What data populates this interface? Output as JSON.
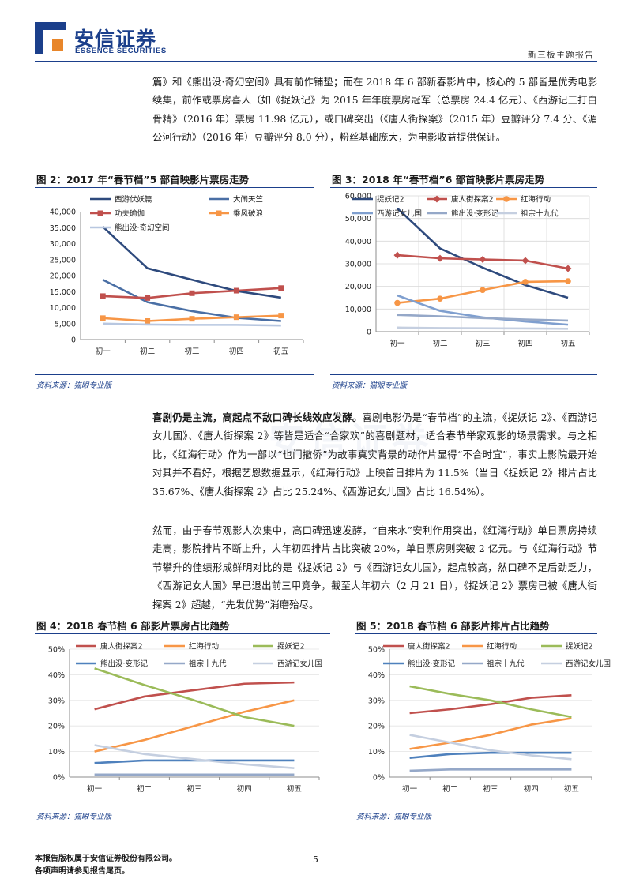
{
  "header": {
    "logo_cn": "安信证券",
    "logo_en": "ESSENCE SECURITIES",
    "report_type": "新三板主题报告",
    "brand_color": "#1b3f8b",
    "accent_color": "#e8862a"
  },
  "watermark": "安信证券",
  "paragraphs": {
    "p1": "篇》和《熊出没·奇幻空间》具有前作铺垫；而在 2018 年 6 部新春影片中，核心的 5 部皆是优秀电影续集，前作或票房喜人（如《捉妖记》为 2015 年年度票房冠军（总票房 24.4 亿元）、《西游记三打白骨精》（2016 年）票房 11.98 亿元），或口碑突出（《唐人街探案》（2015 年）豆瓣评分 7.4 分、《湄公河行动》（2016 年）豆瓣评分 8.0 分），粉丝基础庞大，为电影收益提供保证。",
    "p2_bold": "喜剧仍是主流，高起点不敌口碑长线效应发酵。",
    "p2_rest": "喜剧电影仍是“春节档”的主流，《捉妖记 2》、《西游记女儿国》、《唐人街探案 2》等皆是适合“合家欢”的喜剧题材，适合春节举家观影的场景需求。与之相比，《红海行动》作为一部以“也门撤侨”为故事真实背景的动作片显得“不合时宜”，事实上影院最开始对其并不看好，根据艺恩数据显示，《红海行动》上映首日排片为 11.5%（当日《捉妖记 2》排片占比 35.67%、《唐人街探案 2》占比 25.24%、《西游记女儿国》占比 16.54%）。",
    "p3": "然而，由于春节观影人次集中，高口碑迅速发酵，“自来水”安利作用突出，《红海行动》单日票房持续走高，影院排片不断上升，大年初四排片占比突破 20%，单日票房则突破 2 亿元。与《红海行动》节节攀升的佳绩形成鲜明对比的是《捉妖记 2》与《西游记女儿国》，起点较高，然口碑不足后劲乏力，《西游记女人国》早已退出前三甲竞争，截至大年初六（2 月 21 日），《捉妖记 2》票房已被《唐人街探案 2》超越，“先发优势”消磨殆尽。"
  },
  "figures": [
    {
      "title": "图 2：2017 年“春节档”5 部首映影片票房走势",
      "source": "资料来源：猫眼专业版"
    },
    {
      "title": "图 3：2018 年“春节档”6 部首映影片票房走势",
      "source": "资料来源：猫眼专业版"
    },
    {
      "title": "图 4：2018 春节档 6 部影片票房占比趋势",
      "source": "资料来源：猫眼专业版"
    },
    {
      "title": "图 5：2018 春节档 6 部影片排片占比趋势",
      "source": "资料来源：猫眼专业版"
    }
  ],
  "chart_data": [
    {
      "type": "line",
      "categories": [
        "初一",
        "初二",
        "初三",
        "初四",
        "初五"
      ],
      "ylim": [
        0,
        40000
      ],
      "yticks": [
        "0",
        "5,000",
        "10,000",
        "15,000",
        "20,000",
        "25,000",
        "30,000",
        "35,000",
        "40,000"
      ],
      "legend_position": "top",
      "series": [
        {
          "name": "西游伏妖篇",
          "color": "#2e4a7d",
          "marker": "none",
          "values": [
            35300,
            22300,
            18700,
            15200,
            13100
          ]
        },
        {
          "name": "大闹天竺",
          "color": "#4a6fa5",
          "marker": "none",
          "values": [
            18700,
            11700,
            8900,
            6800,
            5800
          ]
        },
        {
          "name": "功夫瑜伽",
          "color": "#c0504d",
          "marker": "square",
          "values": [
            13600,
            13000,
            14500,
            15300,
            16100
          ]
        },
        {
          "name": "乘风破浪",
          "color": "#f79646",
          "marker": "square",
          "values": [
            6700,
            5800,
            6500,
            7000,
            7500
          ]
        },
        {
          "name": "熊出没·奇幻空间",
          "color": "#b8c7e0",
          "marker": "none",
          "values": [
            5000,
            4700,
            4600,
            4600,
            4400
          ]
        }
      ]
    },
    {
      "type": "line",
      "categories": [
        "初一",
        "初二",
        "初三",
        "初四",
        "初五"
      ],
      "ylim": [
        0,
        60000
      ],
      "yticks": [
        "0",
        "10,000",
        "20,000",
        "30,000",
        "40,000",
        "50,000",
        "60,000"
      ],
      "legend_position": "top",
      "series": [
        {
          "name": "捉妖记2",
          "color": "#2e4a7d",
          "marker": "none",
          "values": [
            54500,
            36800,
            28300,
            20600,
            15000
          ]
        },
        {
          "name": "唐人街探案2",
          "color": "#c0504d",
          "marker": "diamond",
          "values": [
            33800,
            32400,
            31900,
            31400,
            27900
          ]
        },
        {
          "name": "红海行动",
          "color": "#f79646",
          "marker": "circle",
          "values": [
            12700,
            14600,
            18400,
            22000,
            22300
          ]
        },
        {
          "name": "西游记女儿国",
          "color": "#7f9fcf",
          "marker": "none",
          "values": [
            16000,
            9200,
            6300,
            4500,
            3100
          ]
        },
        {
          "name": "熊出没·变形记",
          "color": "#95a8c8",
          "marker": "none",
          "values": [
            7400,
            6800,
            6000,
            5400,
            4900
          ]
        },
        {
          "name": "祖宗十九代",
          "color": "#c5cfe0",
          "marker": "none",
          "values": [
            1800,
            1600,
            1500,
            1400,
            1300
          ]
        }
      ]
    },
    {
      "type": "line",
      "categories": [
        "初一",
        "初二",
        "初三",
        "初四",
        "初五"
      ],
      "ylim": [
        0,
        50
      ],
      "yticks": [
        "0%",
        "10%",
        "20%",
        "30%",
        "40%",
        "50%"
      ],
      "legend_position": "top",
      "series": [
        {
          "name": "唐人街探案2",
          "color": "#c0504d",
          "values": [
            26.5,
            31.5,
            34,
            36.5,
            37
          ]
        },
        {
          "name": "红海行动",
          "color": "#f79646",
          "values": [
            10,
            14.5,
            20,
            25.5,
            30
          ]
        },
        {
          "name": "捉妖记2",
          "color": "#9bbb59",
          "values": [
            42.5,
            36,
            30,
            23.5,
            20
          ]
        },
        {
          "name": "熊出没·变形记",
          "color": "#4f81bd",
          "values": [
            5.5,
            6.5,
            6.5,
            6.5,
            6.5
          ]
        },
        {
          "name": "祖宗十九代",
          "color": "#95a8c8",
          "values": [
            1,
            1,
            1,
            1,
            1
          ]
        },
        {
          "name": "西游记女儿国",
          "color": "#c5cfe0",
          "values": [
            12.5,
            9,
            7,
            5,
            3.5
          ]
        }
      ]
    },
    {
      "type": "line",
      "categories": [
        "初一",
        "初二",
        "初三",
        "初四",
        "初五"
      ],
      "ylim": [
        0,
        50
      ],
      "yticks": [
        "0%",
        "10%",
        "20%",
        "30%",
        "40%",
        "50%"
      ],
      "legend_position": "top",
      "series": [
        {
          "name": "唐人街探案2",
          "color": "#c0504d",
          "values": [
            25,
            26.5,
            28.5,
            31,
            32
          ]
        },
        {
          "name": "红海行动",
          "color": "#f79646",
          "values": [
            11,
            13.5,
            16.5,
            20.5,
            23
          ]
        },
        {
          "name": "捉妖记2",
          "color": "#9bbb59",
          "values": [
            35.5,
            32.5,
            30,
            26.5,
            23.5
          ]
        },
        {
          "name": "熊出没·变形记",
          "color": "#4f81bd",
          "values": [
            7.5,
            9,
            9.5,
            9.5,
            9.5
          ]
        },
        {
          "name": "祖宗十九代",
          "color": "#95a8c8",
          "values": [
            2.5,
            3,
            3,
            3,
            3
          ]
        },
        {
          "name": "西游记女儿国",
          "color": "#c5cfe0",
          "values": [
            16.5,
            13.5,
            10.5,
            8.5,
            7
          ]
        }
      ]
    }
  ],
  "footer": {
    "line1": "本报告版权属于安信证券股份有限公司。",
    "line2": "各项声明请参见报告尾页。",
    "page_number": "5"
  }
}
